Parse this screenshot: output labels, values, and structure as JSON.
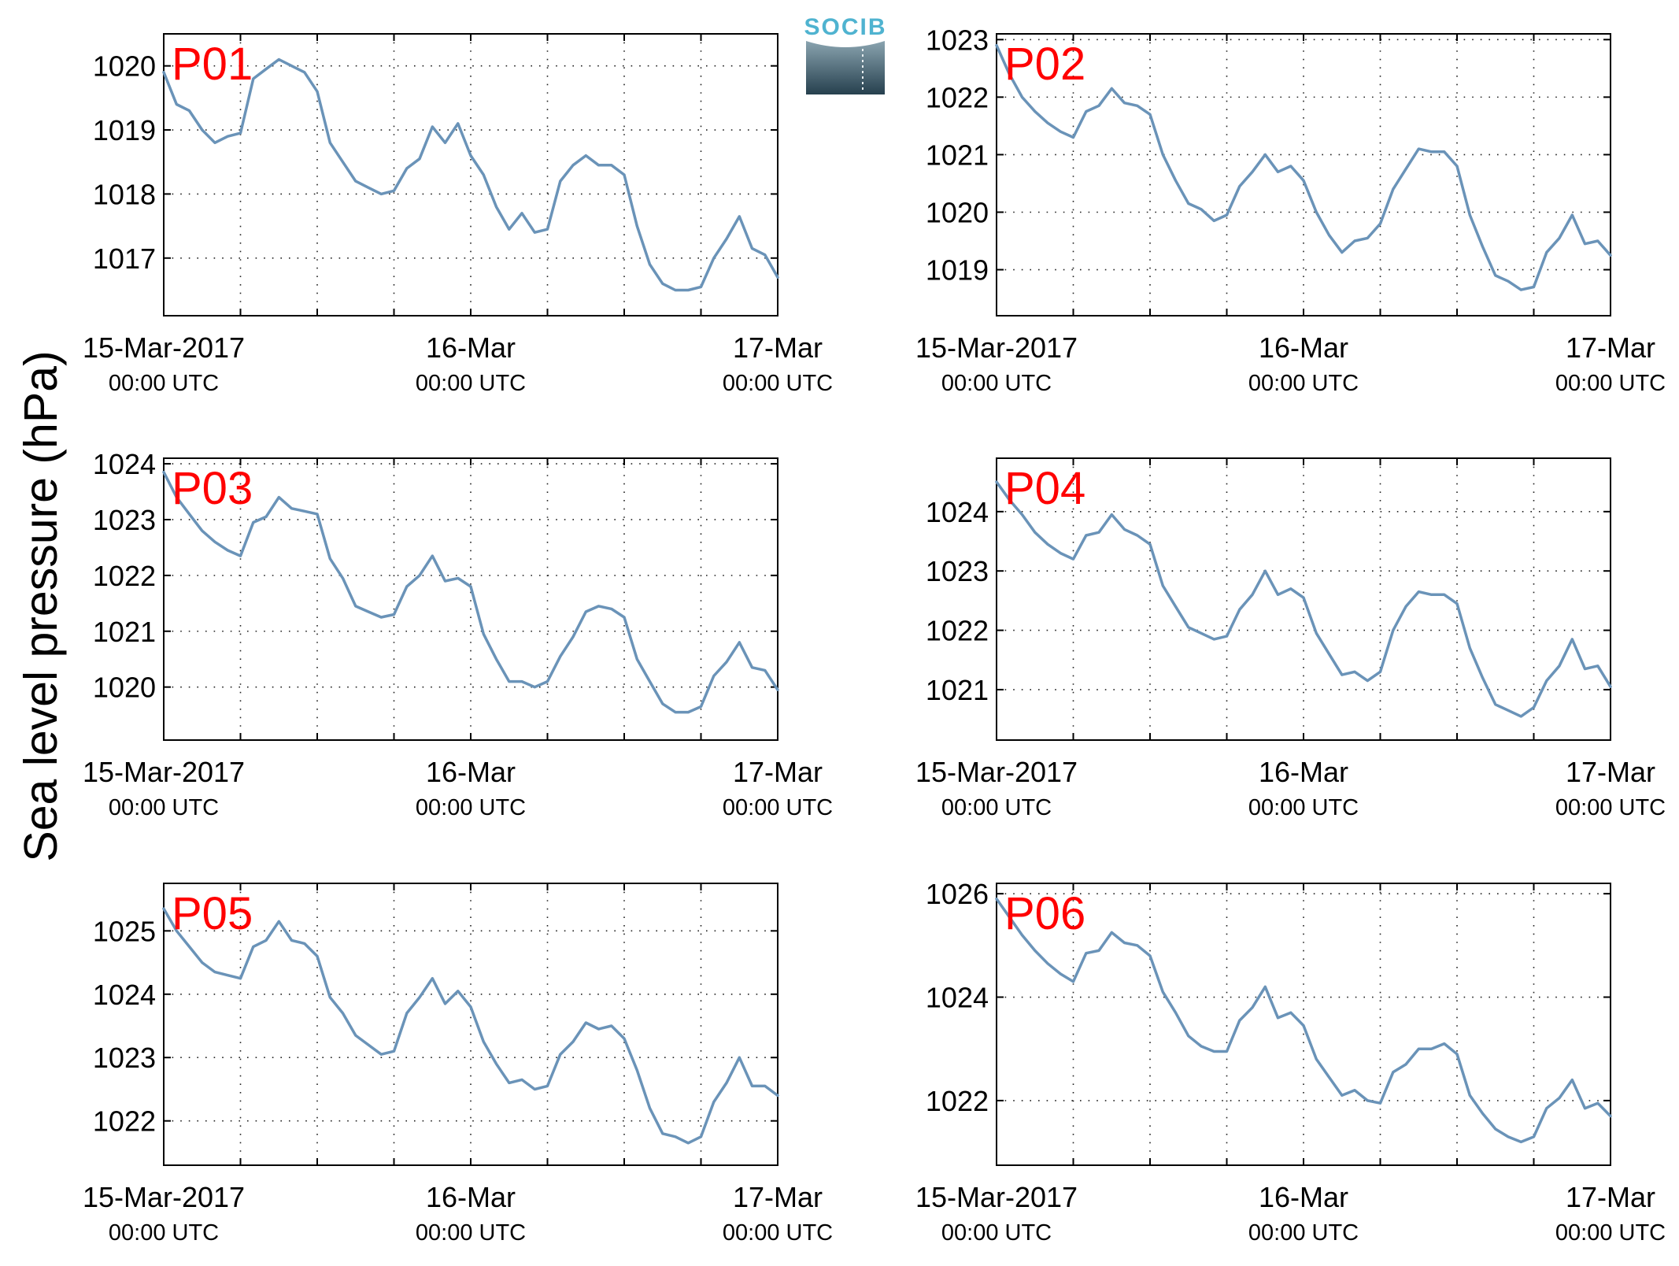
{
  "figure": {
    "ylabel": "Sea level pressure (hPa)",
    "logo_text": "SOCIB",
    "line_color": "#6a93b8",
    "panel_label_color": "#ff0000",
    "x_ticks": [
      {
        "line1": "15-Mar-2017",
        "line2": "00:00 UTC"
      },
      {
        "line1": "16-Mar",
        "line2": "00:00 UTC"
      },
      {
        "line1": "17-Mar",
        "line2": "00:00 UTC"
      }
    ]
  },
  "chart_data": [
    {
      "type": "line",
      "label": "P01",
      "x_unit": "hours since 15-Mar-2017 00:00 UTC",
      "xlim": [
        0,
        48
      ],
      "ylim": [
        1016.1,
        1020.5
      ],
      "yticks": [
        1017,
        1018,
        1019,
        1020
      ],
      "grid": true,
      "x": [
        0,
        1,
        2,
        3,
        4,
        5,
        6,
        7,
        8,
        9,
        10,
        11,
        12,
        13,
        14,
        15,
        16,
        17,
        18,
        19,
        20,
        21,
        22,
        23,
        24,
        25,
        26,
        27,
        28,
        29,
        30,
        31,
        32,
        33,
        34,
        35,
        36,
        37,
        38,
        39,
        40,
        41,
        42,
        43,
        44,
        45,
        46,
        47,
        48
      ],
      "y": [
        1019.9,
        1019.4,
        1019.3,
        1019.0,
        1018.8,
        1018.9,
        1018.95,
        1019.8,
        1019.95,
        1020.1,
        1020.0,
        1019.9,
        1019.6,
        1018.8,
        1018.5,
        1018.2,
        1018.1,
        1018.0,
        1018.05,
        1018.4,
        1018.55,
        1019.05,
        1018.8,
        1019.1,
        1018.6,
        1018.3,
        1017.8,
        1017.45,
        1017.7,
        1017.4,
        1017.45,
        1018.2,
        1018.45,
        1018.6,
        1018.45,
        1018.45,
        1018.3,
        1017.5,
        1016.9,
        1016.6,
        1016.5,
        1016.5,
        1016.55,
        1017.0,
        1017.3,
        1017.65,
        1017.15,
        1017.05,
        1016.7
      ]
    },
    {
      "type": "line",
      "label": "P02",
      "x_unit": "hours since 15-Mar-2017 00:00 UTC",
      "xlim": [
        0,
        48
      ],
      "ylim": [
        1018.2,
        1023.1
      ],
      "yticks": [
        1019,
        1020,
        1021,
        1022,
        1023
      ],
      "grid": true,
      "x": [
        0,
        1,
        2,
        3,
        4,
        5,
        6,
        7,
        8,
        9,
        10,
        11,
        12,
        13,
        14,
        15,
        16,
        17,
        18,
        19,
        20,
        21,
        22,
        23,
        24,
        25,
        26,
        27,
        28,
        29,
        30,
        31,
        32,
        33,
        34,
        35,
        36,
        37,
        38,
        39,
        40,
        41,
        42,
        43,
        44,
        45,
        46,
        47,
        48
      ],
      "y": [
        1022.9,
        1022.4,
        1022.0,
        1021.75,
        1021.55,
        1021.4,
        1021.3,
        1021.75,
        1021.85,
        1022.15,
        1021.9,
        1021.85,
        1021.7,
        1021.0,
        1020.55,
        1020.15,
        1020.05,
        1019.85,
        1019.95,
        1020.45,
        1020.7,
        1021.0,
        1020.7,
        1020.8,
        1020.55,
        1020.0,
        1019.6,
        1019.3,
        1019.5,
        1019.55,
        1019.8,
        1020.4,
        1020.75,
        1021.1,
        1021.05,
        1021.05,
        1020.8,
        1019.95,
        1019.4,
        1018.9,
        1018.8,
        1018.65,
        1018.7,
        1019.3,
        1019.55,
        1019.95,
        1019.45,
        1019.5,
        1019.25
      ]
    },
    {
      "type": "line",
      "label": "P03",
      "x_unit": "hours since 15-Mar-2017 00:00 UTC",
      "xlim": [
        0,
        48
      ],
      "ylim": [
        1019.05,
        1024.1
      ],
      "yticks": [
        1020,
        1021,
        1022,
        1023,
        1024
      ],
      "grid": true,
      "x": [
        0,
        1,
        2,
        3,
        4,
        5,
        6,
        7,
        8,
        9,
        10,
        11,
        12,
        13,
        14,
        15,
        16,
        17,
        18,
        19,
        20,
        21,
        22,
        23,
        24,
        25,
        26,
        27,
        28,
        29,
        30,
        31,
        32,
        33,
        34,
        35,
        36,
        37,
        38,
        39,
        40,
        41,
        42,
        43,
        44,
        45,
        46,
        47,
        48
      ],
      "y": [
        1023.85,
        1023.4,
        1023.1,
        1022.8,
        1022.6,
        1022.45,
        1022.35,
        1022.95,
        1023.05,
        1023.4,
        1023.2,
        1023.15,
        1023.1,
        1022.3,
        1021.95,
        1021.45,
        1021.35,
        1021.25,
        1021.3,
        1021.8,
        1022.0,
        1022.35,
        1021.9,
        1021.95,
        1021.8,
        1020.95,
        1020.5,
        1020.1,
        1020.1,
        1020.0,
        1020.1,
        1020.55,
        1020.9,
        1021.35,
        1021.45,
        1021.4,
        1021.25,
        1020.5,
        1020.1,
        1019.7,
        1019.55,
        1019.55,
        1019.65,
        1020.2,
        1020.45,
        1020.8,
        1020.35,
        1020.3,
        1019.95
      ]
    },
    {
      "type": "line",
      "label": "P04",
      "x_unit": "hours since 15-Mar-2017 00:00 UTC",
      "xlim": [
        0,
        48
      ],
      "ylim": [
        1020.15,
        1024.9
      ],
      "yticks": [
        1021,
        1022,
        1023,
        1024
      ],
      "grid": true,
      "x": [
        0,
        1,
        2,
        3,
        4,
        5,
        6,
        7,
        8,
        9,
        10,
        11,
        12,
        13,
        14,
        15,
        16,
        17,
        18,
        19,
        20,
        21,
        22,
        23,
        24,
        25,
        26,
        27,
        28,
        29,
        30,
        31,
        32,
        33,
        34,
        35,
        36,
        37,
        38,
        39,
        40,
        41,
        42,
        43,
        44,
        45,
        46,
        47,
        48
      ],
      "y": [
        1024.5,
        1024.2,
        1023.95,
        1023.65,
        1023.45,
        1023.3,
        1023.2,
        1023.6,
        1023.65,
        1023.95,
        1023.7,
        1023.6,
        1023.45,
        1022.75,
        1022.4,
        1022.05,
        1021.95,
        1021.85,
        1021.9,
        1022.35,
        1022.6,
        1023.0,
        1022.6,
        1022.7,
        1022.55,
        1021.95,
        1021.6,
        1021.25,
        1021.3,
        1021.15,
        1021.3,
        1022.0,
        1022.4,
        1022.65,
        1022.6,
        1022.6,
        1022.45,
        1021.7,
        1021.2,
        1020.75,
        1020.65,
        1020.55,
        1020.7,
        1021.15,
        1021.4,
        1021.85,
        1021.35,
        1021.4,
        1021.05
      ]
    },
    {
      "type": "line",
      "label": "P05",
      "x_unit": "hours since 15-Mar-2017 00:00 UTC",
      "xlim": [
        0,
        48
      ],
      "ylim": [
        1021.3,
        1025.75
      ],
      "yticks": [
        1022,
        1023,
        1024,
        1025
      ],
      "grid": true,
      "x": [
        0,
        1,
        2,
        3,
        4,
        5,
        6,
        7,
        8,
        9,
        10,
        11,
        12,
        13,
        14,
        15,
        16,
        17,
        18,
        19,
        20,
        21,
        22,
        23,
        24,
        25,
        26,
        27,
        28,
        29,
        30,
        31,
        32,
        33,
        34,
        35,
        36,
        37,
        38,
        39,
        40,
        41,
        42,
        43,
        44,
        45,
        46,
        47,
        48
      ],
      "y": [
        1025.35,
        1025.0,
        1024.75,
        1024.5,
        1024.35,
        1024.3,
        1024.25,
        1024.75,
        1024.85,
        1025.15,
        1024.85,
        1024.8,
        1024.6,
        1023.95,
        1023.7,
        1023.35,
        1023.2,
        1023.05,
        1023.1,
        1023.7,
        1023.95,
        1024.25,
        1023.85,
        1024.05,
        1023.8,
        1023.25,
        1022.9,
        1022.6,
        1022.65,
        1022.5,
        1022.55,
        1023.05,
        1023.25,
        1023.55,
        1023.45,
        1023.5,
        1023.3,
        1022.8,
        1022.2,
        1021.8,
        1021.75,
        1021.65,
        1021.75,
        1022.3,
        1022.6,
        1023.0,
        1022.55,
        1022.55,
        1022.4
      ]
    },
    {
      "type": "line",
      "label": "P06",
      "x_unit": "hours since 15-Mar-2017 00:00 UTC",
      "xlim": [
        0,
        48
      ],
      "ylim": [
        1020.75,
        1026.2
      ],
      "yticks": [
        1022,
        1024,
        1026
      ],
      "grid": true,
      "x": [
        0,
        1,
        2,
        3,
        4,
        5,
        6,
        7,
        8,
        9,
        10,
        11,
        12,
        13,
        14,
        15,
        16,
        17,
        18,
        19,
        20,
        21,
        22,
        23,
        24,
        25,
        26,
        27,
        28,
        29,
        30,
        31,
        32,
        33,
        34,
        35,
        36,
        37,
        38,
        39,
        40,
        41,
        42,
        43,
        44,
        45,
        46,
        47,
        48
      ],
      "y": [
        1025.9,
        1025.55,
        1025.2,
        1024.9,
        1024.65,
        1024.45,
        1024.3,
        1024.85,
        1024.9,
        1025.25,
        1025.05,
        1025.0,
        1024.8,
        1024.1,
        1023.7,
        1023.25,
        1023.05,
        1022.95,
        1022.95,
        1023.55,
        1023.8,
        1024.2,
        1023.6,
        1023.7,
        1023.45,
        1022.8,
        1022.45,
        1022.1,
        1022.2,
        1022.0,
        1021.95,
        1022.55,
        1022.7,
        1023.0,
        1023.0,
        1023.1,
        1022.9,
        1022.1,
        1021.75,
        1021.45,
        1021.3,
        1021.2,
        1021.3,
        1021.85,
        1022.05,
        1022.4,
        1021.85,
        1021.95,
        1021.7
      ]
    }
  ]
}
